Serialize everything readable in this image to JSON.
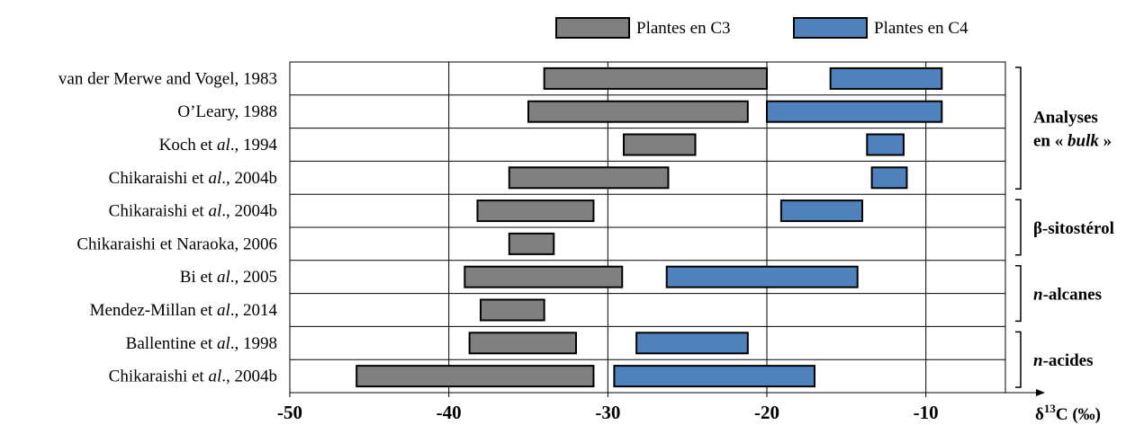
{
  "chart_data": {
    "type": "bar",
    "orientation": "horizontal-range",
    "x_axis": {
      "title": "δ13C (‰)",
      "title_main": "δ",
      "title_sup": "13",
      "title_rest": "C (‰)",
      "range": [
        -50,
        -5
      ],
      "ticks": [
        -50,
        -40,
        -30,
        -20,
        -10
      ],
      "tick_labels": [
        "-50",
        "-40",
        "-30",
        "-20",
        "-10"
      ]
    },
    "grid": true,
    "legend": {
      "placement": "top",
      "entries": [
        {
          "label": "Plantes en C3",
          "color": "#808080"
        },
        {
          "label": "Plantes en C4",
          "color": "#4f81bd"
        }
      ]
    },
    "rows": [
      {
        "segments": [
          {
            "italic": false,
            "text": "van der Merwe and Vogel, 1983"
          }
        ],
        "c3": [
          -34,
          -20
        ],
        "c4": [
          -16,
          -9
        ]
      },
      {
        "segments": [
          {
            "italic": false,
            "text": "O’Leary, 1988"
          }
        ],
        "c3": [
          -35,
          -21.2
        ],
        "c4": [
          -20,
          -9
        ]
      },
      {
        "segments": [
          {
            "italic": false,
            "text": "Koch et "
          },
          {
            "italic": true,
            "text": "al"
          },
          {
            "italic": false,
            "text": "., 1994"
          }
        ],
        "c3": [
          -29,
          -24.5
        ],
        "c4": [
          -13.7,
          -11.4
        ]
      },
      {
        "segments": [
          {
            "italic": false,
            "text": "Chikaraishi et "
          },
          {
            "italic": true,
            "text": "al"
          },
          {
            "italic": false,
            "text": "., 2004b"
          }
        ],
        "c3": [
          -36.2,
          -26.2
        ],
        "c4": [
          -13.4,
          -11.2
        ]
      },
      {
        "segments": [
          {
            "italic": false,
            "text": "Chikaraishi et "
          },
          {
            "italic": true,
            "text": "al"
          },
          {
            "italic": false,
            "text": "., 2004b"
          }
        ],
        "c3": [
          -38.2,
          -30.9
        ],
        "c4": [
          -19.1,
          -14
        ]
      },
      {
        "segments": [
          {
            "italic": false,
            "text": "Chikaraishi et Naraoka, 2006"
          }
        ],
        "c3": [
          -36.2,
          -33.4
        ],
        "c4": null
      },
      {
        "segments": [
          {
            "italic": false,
            "text": "Bi et "
          },
          {
            "italic": true,
            "text": "al"
          },
          {
            "italic": false,
            "text": "., 2005"
          }
        ],
        "c3": [
          -39,
          -29.1
        ],
        "c4": [
          -26.3,
          -14.3
        ]
      },
      {
        "segments": [
          {
            "italic": false,
            "text": "Mendez-Millan et "
          },
          {
            "italic": true,
            "text": "al"
          },
          {
            "italic": false,
            "text": "., 2014"
          }
        ],
        "c3": [
          -38,
          -34
        ],
        "c4": null
      },
      {
        "segments": [
          {
            "italic": false,
            "text": "Ballentine et "
          },
          {
            "italic": true,
            "text": "al"
          },
          {
            "italic": false,
            "text": "., 1998"
          }
        ],
        "c3": [
          -38.7,
          -32
        ],
        "c4": [
          -28.2,
          -21.2
        ]
      },
      {
        "segments": [
          {
            "italic": false,
            "text": "Chikaraishi et "
          },
          {
            "italic": true,
            "text": "al"
          },
          {
            "italic": false,
            "text": "., 2004b"
          }
        ],
        "c3": [
          -45.8,
          -30.9
        ],
        "c4": [
          -29.6,
          -17
        ]
      }
    ],
    "groups": [
      {
        "rows": [
          0,
          3
        ],
        "lines": [
          [
            {
              "italic": false,
              "text": "Analyses"
            }
          ],
          [
            {
              "italic": false,
              "text": "en « "
            },
            {
              "italic": true,
              "text": "bulk"
            },
            {
              "italic": false,
              "text": " »"
            }
          ]
        ]
      },
      {
        "rows": [
          4,
          5
        ],
        "lines": [
          [
            {
              "italic": false,
              "text": "β-sitostérol"
            }
          ]
        ]
      },
      {
        "rows": [
          6,
          7
        ],
        "lines": [
          [
            {
              "italic": true,
              "text": "n"
            },
            {
              "italic": false,
              "text": "-alcanes"
            }
          ]
        ]
      },
      {
        "rows": [
          8,
          9
        ],
        "lines": [
          [
            {
              "italic": true,
              "text": "n"
            },
            {
              "italic": false,
              "text": "-acides"
            }
          ]
        ]
      }
    ]
  }
}
